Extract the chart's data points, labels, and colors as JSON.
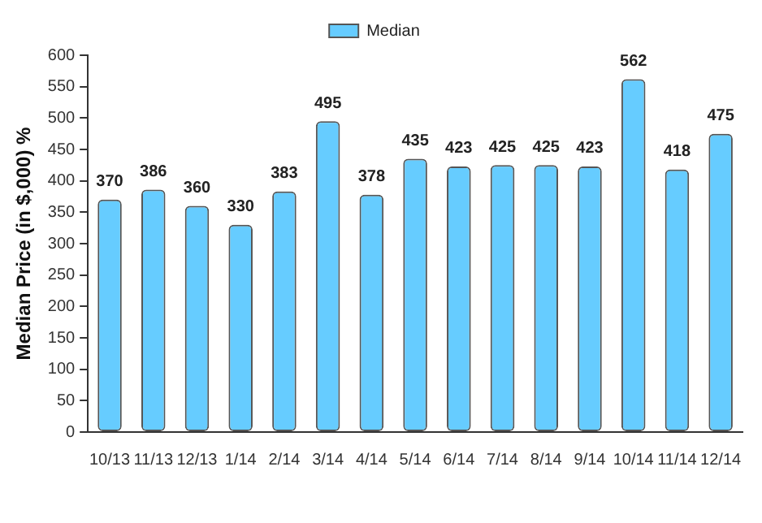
{
  "chart_data": {
    "type": "bar",
    "ylabel": "Median Price (in $,000) %",
    "categories": [
      "10/13",
      "11/13",
      "12/13",
      "1/14",
      "2/14",
      "3/14",
      "4/14",
      "5/14",
      "6/14",
      "7/14",
      "8/14",
      "9/14",
      "10/14",
      "11/14",
      "12/14"
    ],
    "series": [
      {
        "name": "Median",
        "color": "#66ccff",
        "values": [
          370,
          386,
          360,
          330,
          383,
          495,
          378,
          435,
          423,
          425,
          425,
          423,
          562,
          418,
          475
        ]
      }
    ],
    "ylim": [
      0,
      600
    ],
    "yticks": [
      0,
      50,
      100,
      150,
      200,
      250,
      300,
      350,
      400,
      450,
      500,
      550,
      600
    ],
    "grid": false,
    "legend": "top",
    "data_labels": true
  }
}
